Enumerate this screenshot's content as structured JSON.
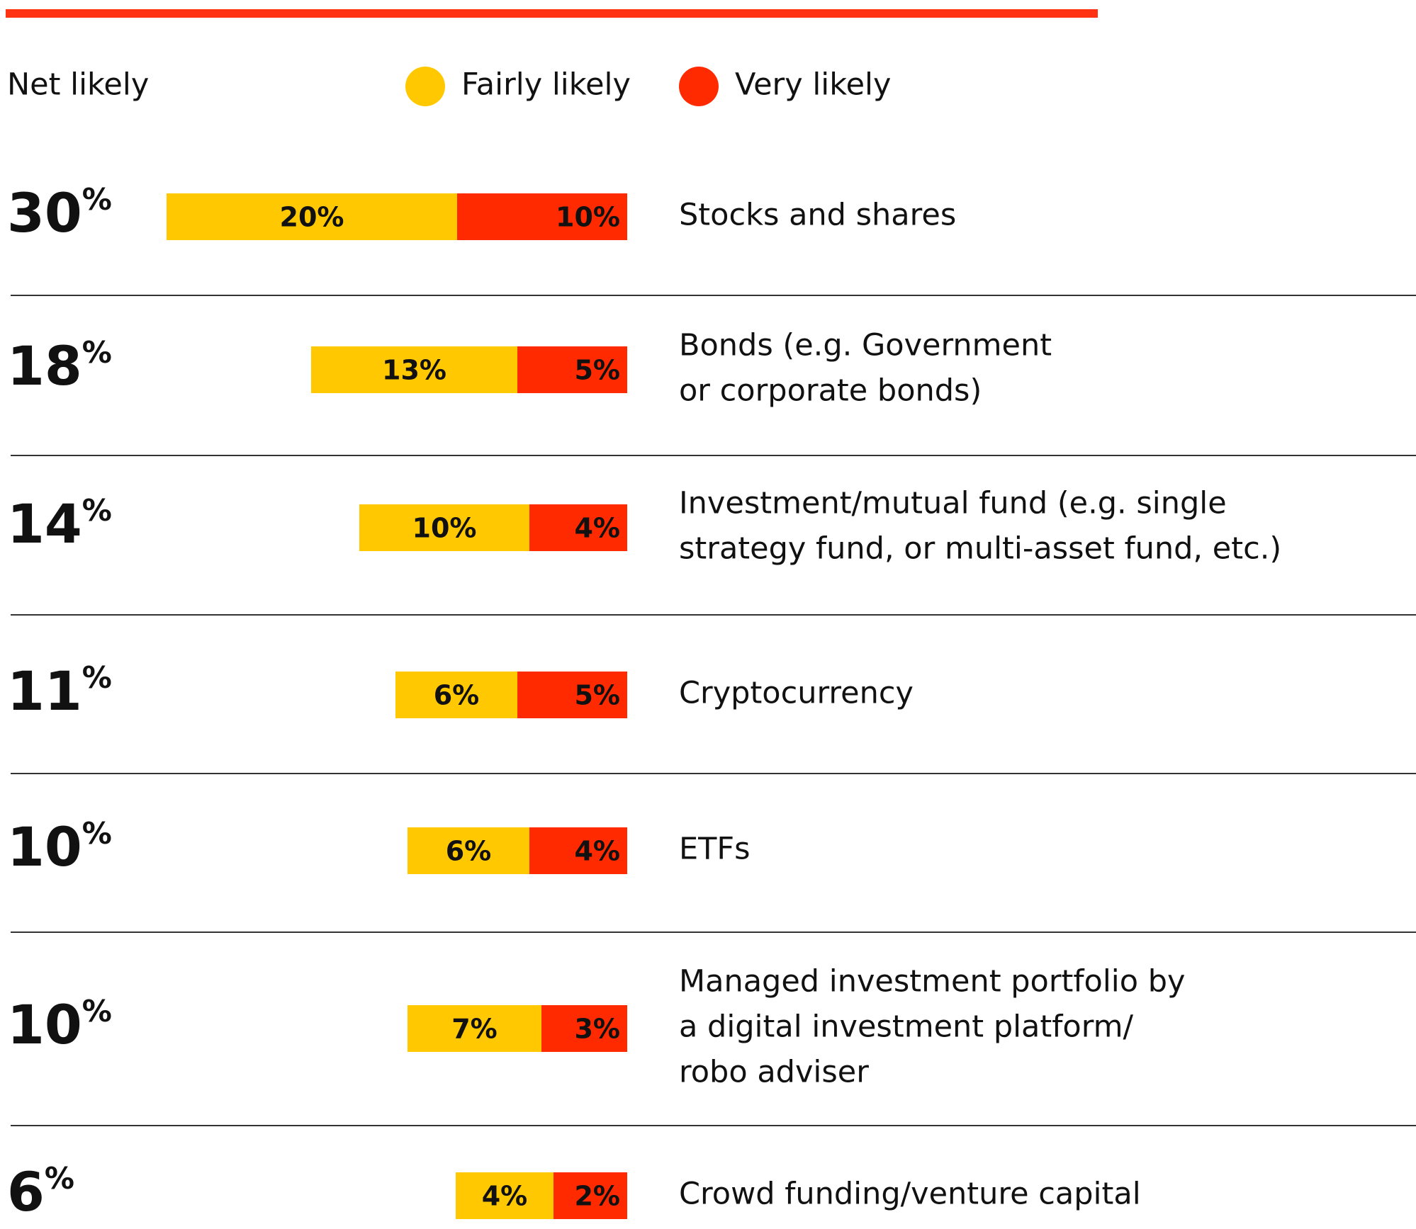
{
  "chart_data": {
    "type": "stacked-bar",
    "legend_title": "Net likely",
    "categories": [
      [
        "Stocks and shares"
      ],
      [
        "Bonds (e.g. Government",
        "or corporate bonds)"
      ],
      [
        "Investment/mutual fund (e.g. single",
        "strategy fund, or multi-asset fund, etc.)"
      ],
      [
        "Cryptocurrency"
      ],
      [
        "ETFs"
      ],
      [
        "Managed investment portfolio by",
        "a digital investment platform/",
        "robo adviser"
      ],
      [
        "Crowd funding/venture capital"
      ]
    ],
    "net_values": [
      30,
      18,
      14,
      11,
      10,
      10,
      6
    ],
    "net_unit": "%",
    "series": [
      {
        "name": "Fairly likely",
        "color": "#ffc800",
        "values": [
          20,
          13,
          10,
          6,
          6,
          7,
          4
        ],
        "value_labels": [
          "20%",
          "13%",
          "10%",
          "6%",
          "6%",
          "7%",
          "4%"
        ]
      },
      {
        "name": "Very likely",
        "color": "#ff2a00",
        "values": [
          10,
          5,
          4,
          5,
          4,
          3,
          2
        ],
        "value_labels": [
          "10%",
          "5%",
          "4%",
          "5%",
          "4%",
          "3%",
          "2%"
        ]
      }
    ]
  }
}
